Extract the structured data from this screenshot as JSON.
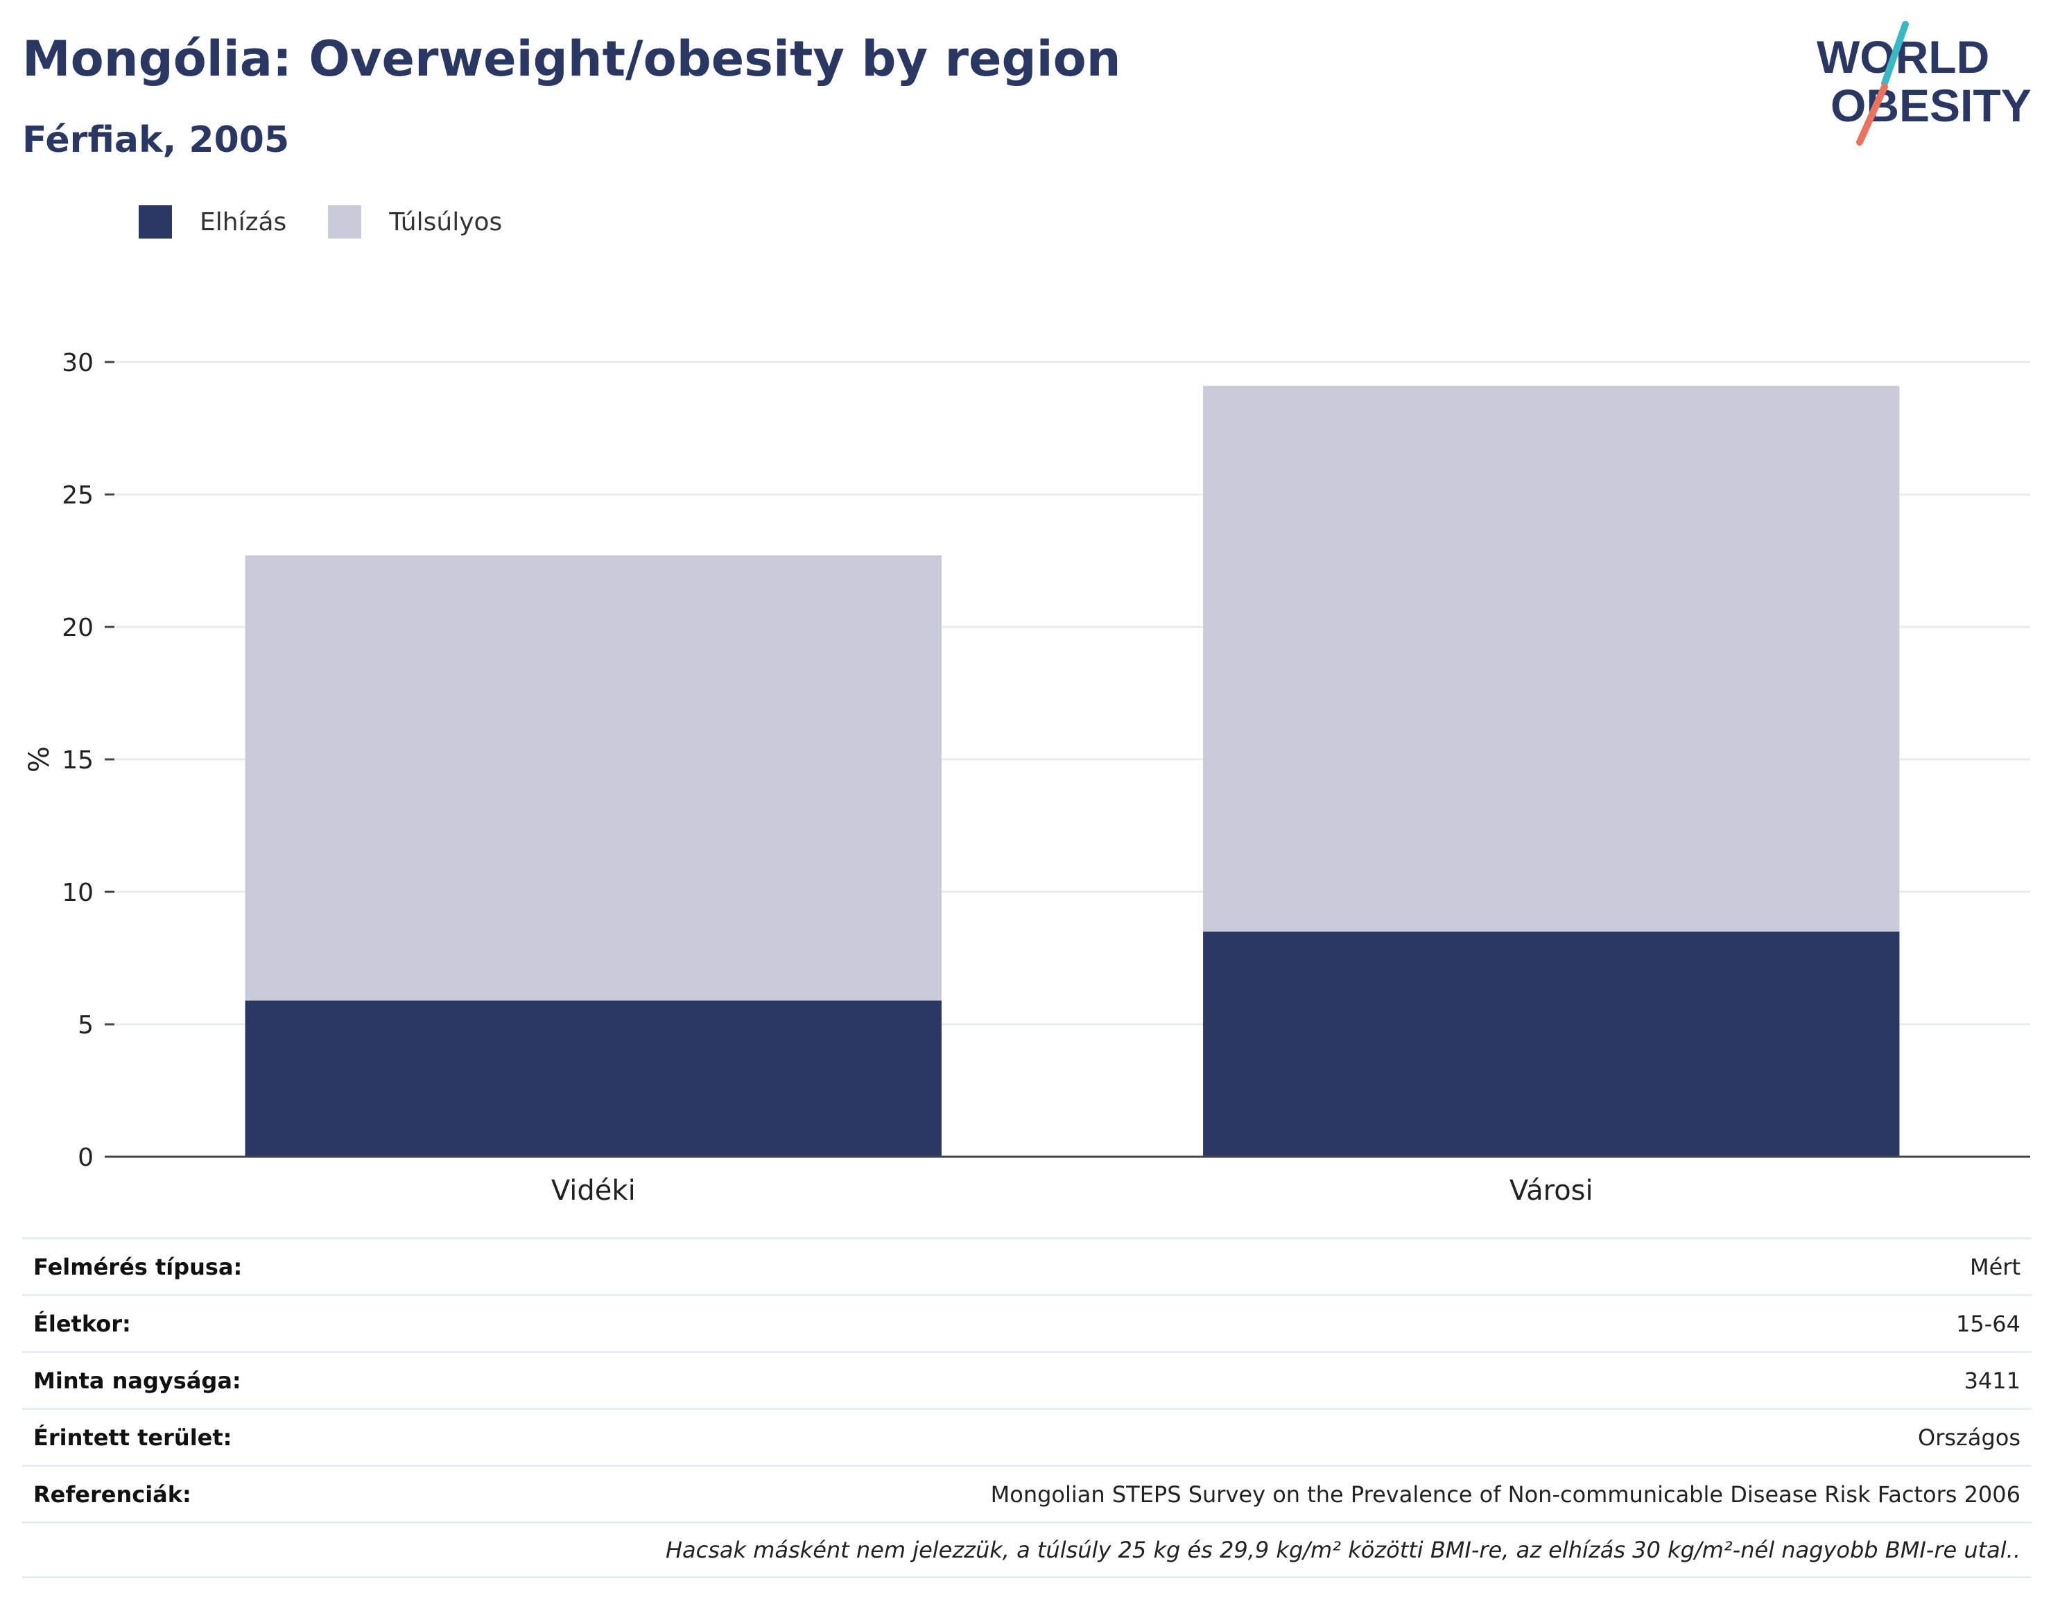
{
  "header": {
    "title": "Mongólia: Overweight/obesity by region",
    "subtitle": "Férfiak, 2005"
  },
  "logo": {
    "line1": "WORLD",
    "line2": "OBESITY",
    "colors": {
      "text": "#2b3763",
      "slash_top": "#3bb8c4",
      "slash_bottom": "#e8735f"
    }
  },
  "legend": {
    "items": [
      {
        "label": "Elhízás",
        "color": "#2b3763"
      },
      {
        "label": "Túlsúlyos",
        "color": "#c9ccd8"
      }
    ]
  },
  "chart_data": {
    "type": "bar",
    "stacked": true,
    "categories": [
      "Vidéki",
      "Városi"
    ],
    "series": [
      {
        "name": "Elhízás",
        "values": [
          5.9,
          8.5
        ],
        "color": "#2b3763"
      },
      {
        "name": "Túlsúlyos",
        "values": [
          16.8,
          20.6
        ],
        "color": "#c9ccd8"
      }
    ],
    "ylabel": "%",
    "ylim": [
      0,
      30
    ],
    "yticks": [
      "0",
      "5",
      "10",
      "15",
      "20",
      "25",
      "30"
    ],
    "grid": true,
    "legend_position": "top-left"
  },
  "info": {
    "rows": [
      {
        "key": "Felmérés típusa:",
        "value": "Mért"
      },
      {
        "key": "Életkor:",
        "value": "15-64"
      },
      {
        "key": "Minta nagysága:",
        "value": "3411"
      },
      {
        "key": "Érintett terület:",
        "value": "Országos"
      },
      {
        "key": "Referenciák:",
        "value": "Mongolian STEPS Survey on the Prevalence of Non-communicable Disease Risk Factors 2006"
      }
    ],
    "note": "Hacsak másként nem jelezzük, a túlsúly 25 kg és 29,9 kg/m² közötti BMI-re, az elhízás 30 kg/m²-nél nagyobb BMI-re utal.."
  }
}
